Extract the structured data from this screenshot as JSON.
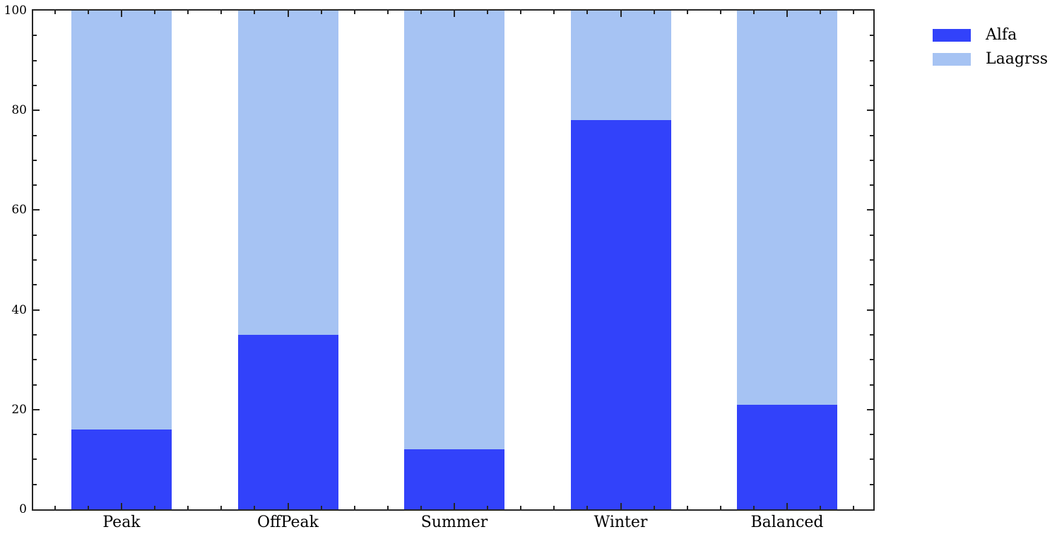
{
  "chart_data": {
    "type": "bar",
    "stacked": true,
    "orientation": "vertical",
    "title": "",
    "xlabel": "",
    "ylabel": "",
    "categories": [
      "Peak",
      "OffPeak",
      "Summer",
      "Winter",
      "Balanced"
    ],
    "series": [
      {
        "name": "Alfa",
        "color": "#3242fa",
        "values": [
          16,
          35,
          12,
          78,
          21
        ]
      },
      {
        "name": "Laagrss",
        "color": "#a6c3f3",
        "values": [
          84,
          65,
          88,
          22,
          79
        ]
      }
    ],
    "stack_total": 100,
    "ylim": [
      0,
      100
    ],
    "yticks": [
      0,
      20,
      40,
      60,
      80,
      100
    ],
    "ytick_minor_step": 5,
    "grid": false,
    "axes_box": true,
    "tick_direction": "in",
    "axis_color": "#262626",
    "legend": {
      "position": "outside-top-right",
      "entries": [
        "Alfa",
        "Laagrss"
      ]
    }
  }
}
